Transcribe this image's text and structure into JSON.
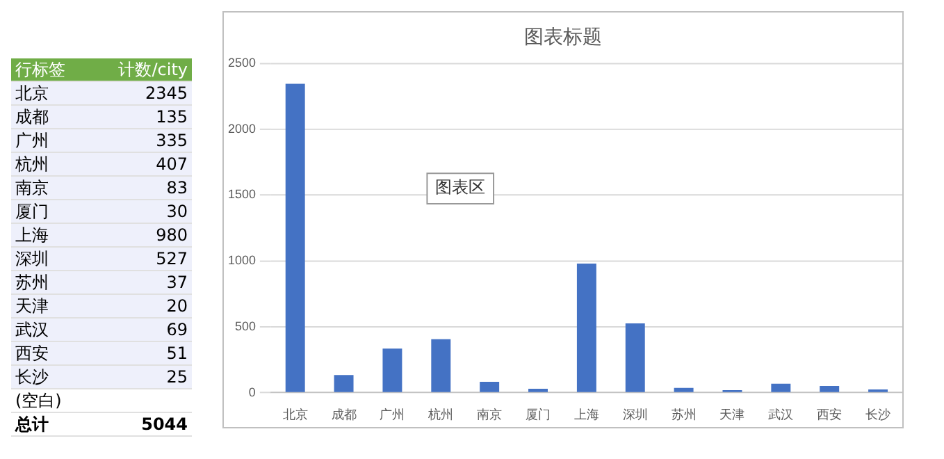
{
  "chart_data": {
    "type": "bar",
    "title": "图表标题",
    "categories": [
      "北京",
      "成都",
      "广州",
      "杭州",
      "南京",
      "厦门",
      "上海",
      "深圳",
      "苏州",
      "天津",
      "武汉",
      "西安",
      "长沙"
    ],
    "values": [
      2345,
      135,
      335,
      407,
      83,
      30,
      980,
      527,
      37,
      20,
      69,
      51,
      25
    ],
    "color": "#4472c4",
    "ylim": [
      0,
      2500
    ],
    "yticks": [
      0,
      500,
      1000,
      1500,
      2000,
      2500
    ],
    "grid": "y",
    "legend": false,
    "annotations": [
      "行标签",
      "计数/city",
      "(空白)",
      "总计",
      "5044",
      "图表区",
      "2345",
      "135",
      "335",
      "407",
      "83",
      "30",
      "980",
      "527",
      "37",
      "20",
      "69",
      "51",
      "25"
    ]
  }
}
